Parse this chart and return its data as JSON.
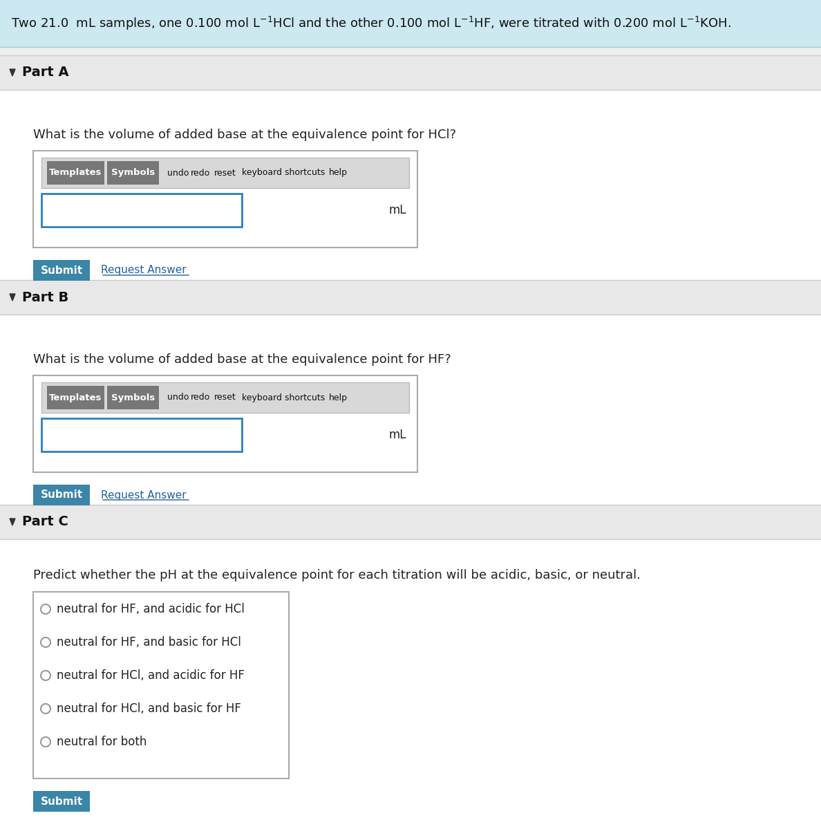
{
  "header_bg": "#cce8f0",
  "page_bg": "#efefef",
  "white_bg": "#ffffff",
  "section_header_bg": "#e8e8e8",
  "part_a_label": "Part A",
  "part_b_label": "Part B",
  "part_c_label": "Part C",
  "part_a_question": "What is the volume of added base at the equivalence point for HCl?",
  "part_b_question": "What is the volume of added base at the equivalence point for HF?",
  "part_c_question": "Predict whether the pH at the equivalence point for each titration will be acidic, basic, or neutral.",
  "toolbar_text_items": [
    "undo",
    "redo",
    "reset",
    "keyboard shortcuts",
    "help"
  ],
  "ml_label": "mL",
  "submit_label": "Submit",
  "submit_bg": "#3a85a8",
  "submit_text_color": "#ffffff",
  "request_answer_label": "Request Answer",
  "request_answer_color": "#2060a0",
  "part_c_options": [
    "neutral for HF, and acidic for HCl",
    "neutral for HF, and basic for HCl",
    "neutral for HCl, and acidic for HF",
    "neutral for HCl, and basic for HF",
    "neutral for both"
  ],
  "arrow_color": "#333333",
  "outer_box_border": "#aaaaaa",
  "toolbar_outer_bg": "#d8d8d8",
  "toolbar_btn_bg": "#777777",
  "toolbar_text_color": "#ffffff",
  "toolbar_plain_text_color": "#111111",
  "input_border_color": "#2a80c0",
  "separator_color": "#cccccc",
  "text_color": "#222222",
  "radio_color": "#999999",
  "part_label_color": "#111111",
  "header_text_color": "#111111",
  "request_underline_color": "#2060a0"
}
